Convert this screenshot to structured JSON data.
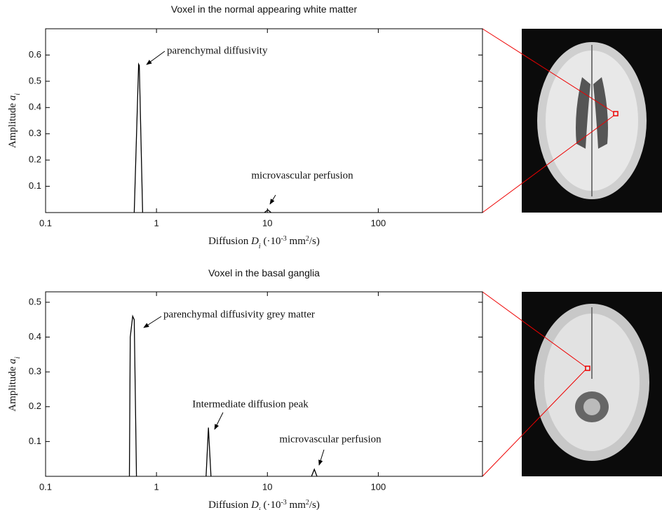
{
  "chart_data": [
    {
      "type": "line",
      "title": "Voxel in the normal appearing white matter",
      "x_label": [
        "Diffusion ",
        "D",
        "i",
        " (·10",
        "-3",
        " mm",
        "2",
        "/s)"
      ],
      "y_label": [
        "Amplitude ",
        "a",
        "i"
      ],
      "log_x": true,
      "color": "#000000",
      "xlim": [
        0.1,
        870
      ],
      "xticks": [
        0.1,
        1,
        10,
        100
      ],
      "ylim": [
        0,
        0.7
      ],
      "yticks": [
        0.1,
        0.2,
        0.3,
        0.4,
        0.5,
        0.6
      ],
      "x": [
        0.63,
        0.69,
        0.7,
        0.75,
        3,
        9.4,
        10.1,
        10.8
      ],
      "values": [
        0,
        0.565,
        0.56,
        0,
        null,
        0,
        0.01,
        0
      ],
      "annotations": [
        "parenchymal diffusivity",
        "microvascular perfusion"
      ]
    },
    {
      "type": "line",
      "title": "Voxel in the basal ganglia",
      "x_label": [
        "Diffusion ",
        "D",
        "i",
        " (·10",
        "-3",
        " mm",
        "2",
        "/s)"
      ],
      "y_label": [
        "Amplitude ",
        "a",
        "i"
      ],
      "log_x": true,
      "color": "#000000",
      "xlim": [
        0.1,
        870
      ],
      "xticks": [
        0.1,
        1,
        10,
        100
      ],
      "ylim": [
        0,
        0.53
      ],
      "yticks": [
        0.1,
        0.2,
        0.3,
        0.4,
        0.5
      ],
      "x": [
        0.57,
        0.58,
        0.61,
        0.63,
        0.66,
        1.5,
        2.8,
        2.94,
        3.1,
        10,
        25,
        26.5,
        28
      ],
      "values": [
        0,
        0.4,
        0.46,
        0.45,
        0,
        null,
        0,
        0.14,
        0,
        null,
        0,
        0.02,
        0
      ],
      "annotations": [
        "parenchymal diffusivity grey matter",
        "Intermediate diffusion peak",
        "microvascular perfusion"
      ]
    }
  ]
}
